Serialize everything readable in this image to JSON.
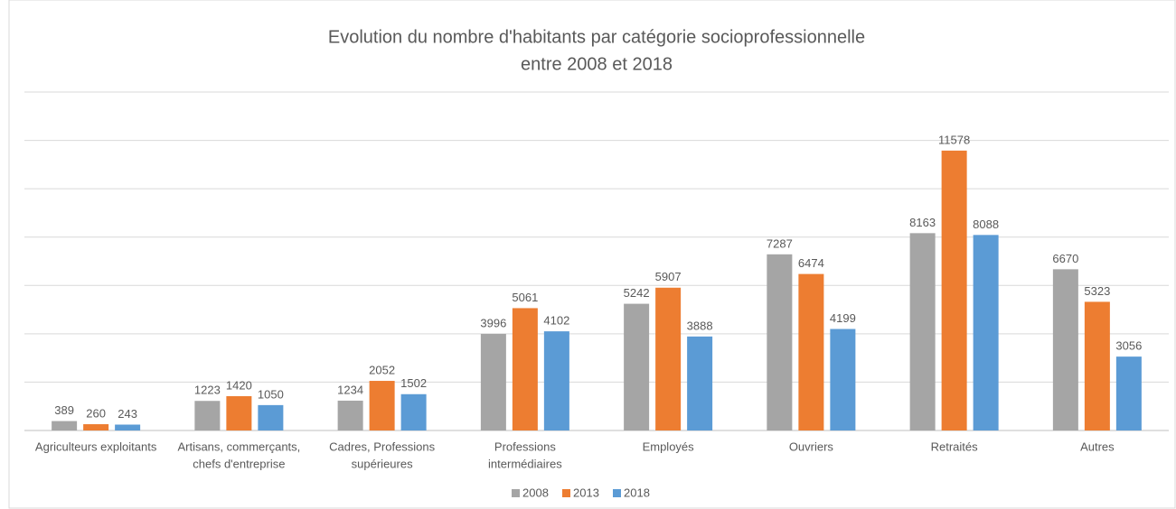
{
  "chart_data": {
    "type": "bar",
    "title": [
      "Evolution du nombre d'habitants par catégorie socioprofessionnelle",
      "entre 2008 et 2018"
    ],
    "categories": [
      [
        "Agriculteurs exploitants"
      ],
      [
        "Artisans, commerçants,",
        "chefs d'entreprise"
      ],
      [
        "Cadres, Professions",
        "supérieures"
      ],
      [
        "Professions",
        "intermédiaires"
      ],
      [
        "Employés"
      ],
      [
        "Ouvriers"
      ],
      [
        "Retraités"
      ],
      [
        "Autres"
      ]
    ],
    "series": [
      {
        "name": "2008",
        "color": "#a5a5a5",
        "values": [
          389,
          1223,
          1234,
          3996,
          5242,
          7287,
          8163,
          6670
        ]
      },
      {
        "name": "2013",
        "color": "#ed7d31",
        "values": [
          260,
          1420,
          2052,
          5061,
          5907,
          6474,
          11578,
          5323
        ]
      },
      {
        "name": "2018",
        "color": "#5b9bd5",
        "values": [
          243,
          1050,
          1502,
          4102,
          3888,
          4199,
          8088,
          3056
        ]
      }
    ],
    "ylim": [
      0,
      14000
    ],
    "yticks": [
      0,
      2000,
      4000,
      6000,
      8000,
      10000,
      12000,
      14000
    ],
    "grid": true,
    "legend": "bottom"
  }
}
